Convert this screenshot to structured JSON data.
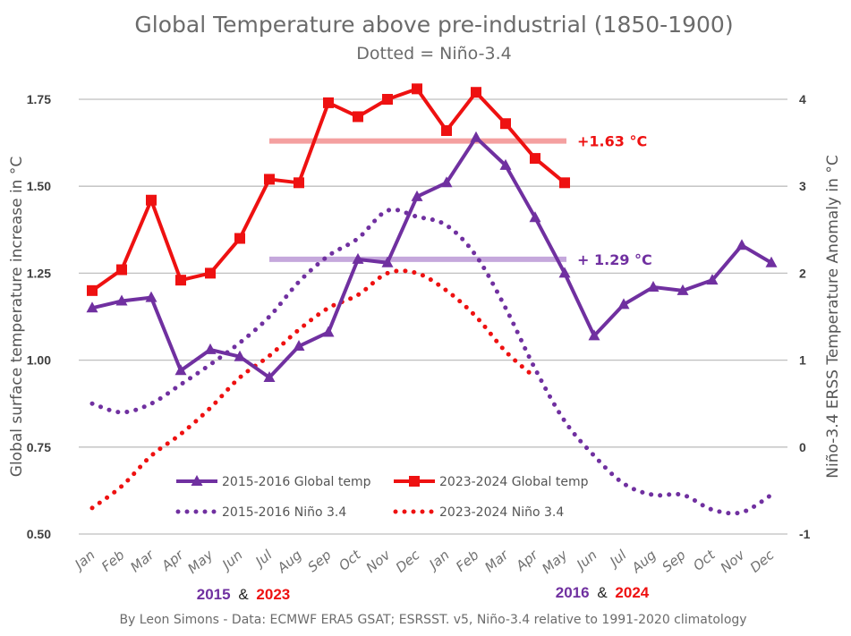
{
  "chart_data": {
    "type": "line",
    "title": "Global Temperature above pre-industrial (1850-1900)",
    "subtitle": "Dotted = Niño-3.4",
    "ylabel": "Global surface temperature increase in °C",
    "y2label": "Niño-3.4 ERSS Temperature Anomaly in °C",
    "ylim": [
      0.5,
      1.75
    ],
    "y2lim": [
      -1,
      4
    ],
    "yticks": [
      "1.75",
      "1.50",
      "1.25",
      "1.00",
      "0.75",
      "0.50"
    ],
    "yticks_values": [
      1.75,
      1.5,
      1.25,
      1.0,
      0.75,
      0.5
    ],
    "y2ticks": [
      "4",
      "3",
      "2",
      "1",
      "0",
      "-1"
    ],
    "y2ticks_values": [
      4,
      3,
      2,
      1,
      0,
      -1
    ],
    "grid": true,
    "categories": [
      "Jan",
      "Feb",
      "Mar",
      "Apr",
      "May",
      "Jun",
      "Jul",
      "Aug",
      "Sep",
      "Oct",
      "Nov",
      "Dec",
      "Jan",
      "Feb",
      "Mar",
      "Apr",
      "May",
      "Jun",
      "Jul",
      "Aug",
      "Sep",
      "Oct",
      "Nov",
      "Dec"
    ],
    "series": [
      {
        "name": "2015-2016 Global temp",
        "axis": "left",
        "style": "solid",
        "marker": "triangle",
        "color": "#7030a0",
        "values": [
          1.15,
          1.17,
          1.18,
          0.97,
          1.03,
          1.01,
          0.95,
          1.04,
          1.08,
          1.29,
          1.28,
          1.47,
          1.51,
          1.64,
          1.56,
          1.41,
          1.25,
          1.07,
          1.16,
          1.21,
          1.2,
          1.23,
          1.33,
          1.28
        ]
      },
      {
        "name": "2023-2024 Global temp",
        "axis": "left",
        "style": "solid",
        "marker": "square",
        "color": "#ee1111",
        "values": [
          1.2,
          1.26,
          1.46,
          1.23,
          1.25,
          1.35,
          1.52,
          1.51,
          1.74,
          1.7,
          1.75,
          1.78,
          1.66,
          1.77,
          1.68,
          1.58,
          1.51
        ]
      },
      {
        "name": "2015-2016 Niño 3.4",
        "axis": "right",
        "style": "dotted",
        "marker": "none",
        "color": "#7030a0",
        "values": [
          0.5,
          0.4,
          0.5,
          0.72,
          0.95,
          1.2,
          1.5,
          1.9,
          2.2,
          2.4,
          2.72,
          2.65,
          2.55,
          2.2,
          1.6,
          0.9,
          0.3,
          -0.1,
          -0.42,
          -0.55,
          -0.55,
          -0.72,
          -0.75,
          -0.55
        ]
      },
      {
        "name": "2023-2024 Niño 3.4",
        "axis": "right",
        "style": "dotted",
        "marker": "none",
        "color": "#ee1111",
        "values": [
          -0.7,
          -0.45,
          -0.1,
          0.15,
          0.45,
          0.8,
          1.05,
          1.35,
          1.6,
          1.75,
          2.0,
          2.0,
          1.8,
          1.5,
          1.1,
          0.8
        ]
      }
    ],
    "reference_lines": [
      {
        "label": "+1.63 °C",
        "value": 1.63,
        "axis": "left",
        "from_index": 6,
        "to_index": 16,
        "color": "#f4a0a0",
        "text_color": "#ee1111"
      },
      {
        "label": "+ 1.29 °C",
        "value": 1.29,
        "axis": "left",
        "from_index": 6,
        "to_index": 16,
        "color": "#c5a8dc",
        "text_color": "#7030a0"
      }
    ],
    "legend_position": "bottom-center-inside",
    "year_labels": [
      {
        "first": "2015",
        "amp": "&",
        "second": "2023"
      },
      {
        "first": "2016",
        "amp": "&",
        "second": "2024"
      }
    ],
    "credit": "By Leon Simons - Data: ECMWF ERA5 GSAT; ESRSST. v5, Niño-3.4 relative to 1991-2020 climatology"
  },
  "colors": {
    "purple": "#7030a0",
    "red": "#ee1111",
    "grid": "#bfbfbf"
  }
}
